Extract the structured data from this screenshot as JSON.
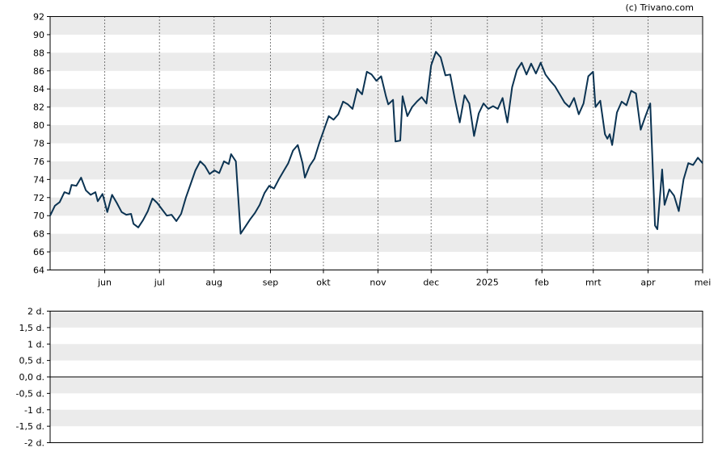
{
  "credit": "(c) Trivano.com",
  "colors": {
    "line": "#0b3352",
    "band": "#ebebeb",
    "grid": "#000000",
    "background": "#ffffff"
  },
  "chart_data": [
    {
      "type": "line",
      "title": "",
      "xlabel": "",
      "ylabel": "",
      "ylim": [
        64,
        92
      ],
      "grid": "dotted vertical lines at month boundaries, alternating horizontal bands",
      "y_ticks": [
        64,
        66,
        68,
        70,
        72,
        74,
        76,
        78,
        80,
        82,
        84,
        86,
        88,
        90,
        92
      ],
      "x_months": [
        {
          "label": "jun",
          "x": 30.4
        },
        {
          "label": "jul",
          "x": 60.9
        },
        {
          "label": "aug",
          "x": 91.3
        },
        {
          "label": "sep",
          "x": 122.7
        },
        {
          "label": "okt",
          "x": 152.2
        },
        {
          "label": "nov",
          "x": 182.6
        },
        {
          "label": "dec",
          "x": 212.2
        },
        {
          "label": "2025",
          "x": 243.5
        },
        {
          "label": "feb",
          "x": 273.9
        },
        {
          "label": "mrt",
          "x": 302.5
        },
        {
          "label": "apr",
          "x": 333.0
        },
        {
          "label": "mei",
          "x": 363.4
        }
      ],
      "series": [
        {
          "values": [
            [
              0,
              70.0
            ],
            [
              2,
              71.1
            ],
            [
              4,
              71.5
            ],
            [
              6,
              72.6
            ],
            [
              8,
              72.4
            ],
            [
              9,
              73.4
            ],
            [
              11,
              73.3
            ],
            [
              13,
              74.2
            ],
            [
              15,
              72.8
            ],
            [
              17,
              72.3
            ],
            [
              19,
              72.6
            ],
            [
              20,
              71.6
            ],
            [
              22,
              72.4
            ],
            [
              24,
              70.4
            ],
            [
              26,
              72.3
            ],
            [
              28,
              71.4
            ],
            [
              30,
              70.4
            ],
            [
              32,
              70.1
            ],
            [
              34,
              70.2
            ],
            [
              35,
              69.1
            ],
            [
              37,
              68.7
            ],
            [
              39,
              69.5
            ],
            [
              41,
              70.5
            ],
            [
              43,
              71.9
            ],
            [
              45,
              71.4
            ],
            [
              47,
              70.7
            ],
            [
              49,
              70.0
            ],
            [
              51,
              70.1
            ],
            [
              53,
              69.4
            ],
            [
              55,
              70.2
            ],
            [
              57,
              72.0
            ],
            [
              59,
              73.5
            ],
            [
              61,
              75.0
            ],
            [
              63,
              76.0
            ],
            [
              65,
              75.5
            ],
            [
              67,
              74.6
            ],
            [
              69,
              75.0
            ],
            [
              71,
              74.7
            ],
            [
              73,
              76.0
            ],
            [
              75,
              75.7
            ],
            [
              76,
              76.8
            ],
            [
              78,
              76.0
            ],
            [
              80,
              68.0
            ],
            [
              82,
              68.8
            ],
            [
              84,
              69.6
            ],
            [
              86,
              70.3
            ],
            [
              88,
              71.2
            ],
            [
              90,
              72.5
            ],
            [
              92,
              73.3
            ],
            [
              94,
              73.0
            ],
            [
              96,
              74.0
            ],
            [
              98,
              74.9
            ],
            [
              100,
              75.8
            ],
            [
              102,
              77.2
            ],
            [
              104,
              77.8
            ],
            [
              106,
              75.8
            ],
            [
              107,
              74.2
            ],
            [
              109,
              75.5
            ],
            [
              111,
              76.3
            ],
            [
              113,
              78.0
            ],
            [
              115,
              79.5
            ],
            [
              117,
              81.0
            ],
            [
              119,
              80.6
            ],
            [
              121,
              81.2
            ],
            [
              123,
              82.6
            ],
            [
              125,
              82.3
            ],
            [
              127,
              81.8
            ],
            [
              129,
              84.0
            ],
            [
              131,
              83.4
            ],
            [
              133,
              85.9
            ],
            [
              135,
              85.6
            ],
            [
              137,
              84.9
            ],
            [
              139,
              85.4
            ],
            [
              141,
              83.2
            ],
            [
              142,
              82.3
            ],
            [
              144,
              82.8
            ],
            [
              145,
              78.2
            ],
            [
              147,
              78.3
            ],
            [
              148,
              83.2
            ],
            [
              150,
              81.0
            ],
            [
              152,
              82.0
            ],
            [
              154,
              82.6
            ],
            [
              156,
              83.1
            ],
            [
              158,
              82.4
            ],
            [
              160,
              86.6
            ],
            [
              162,
              88.1
            ],
            [
              164,
              87.5
            ],
            [
              166,
              85.5
            ],
            [
              168,
              85.6
            ],
            [
              170,
              82.8
            ],
            [
              172,
              80.3
            ],
            [
              174,
              83.3
            ],
            [
              176,
              82.4
            ],
            [
              178,
              78.8
            ],
            [
              180,
              81.3
            ],
            [
              182,
              82.4
            ],
            [
              184,
              81.8
            ],
            [
              186,
              82.1
            ],
            [
              188,
              81.8
            ],
            [
              190,
              83.0
            ],
            [
              192,
              80.3
            ],
            [
              194,
              84.2
            ],
            [
              196,
              86.1
            ],
            [
              198,
              86.9
            ],
            [
              200,
              85.6
            ],
            [
              202,
              86.8
            ],
            [
              204,
              85.7
            ],
            [
              206,
              86.9
            ],
            [
              208,
              85.6
            ],
            [
              210,
              84.9
            ],
            [
              212,
              84.3
            ],
            [
              214,
              83.4
            ],
            [
              216,
              82.5
            ],
            [
              218,
              82.0
            ],
            [
              220,
              83.0
            ],
            [
              222,
              81.2
            ],
            [
              224,
              82.4
            ],
            [
              226,
              85.4
            ],
            [
              228,
              85.9
            ],
            [
              229,
              82.0
            ],
            [
              231,
              82.7
            ],
            [
              233,
              79.0
            ],
            [
              234,
              78.5
            ],
            [
              235,
              79.0
            ],
            [
              236,
              77.8
            ],
            [
              238,
              81.4
            ],
            [
              240,
              82.6
            ],
            [
              242,
              82.2
            ],
            [
              244,
              83.8
            ],
            [
              246,
              83.5
            ],
            [
              248,
              79.5
            ],
            [
              250,
              81.0
            ],
            [
              252,
              82.4
            ],
            [
              254,
              68.9
            ],
            [
              255,
              68.5
            ],
            [
              257,
              75.1
            ],
            [
              258,
              71.2
            ],
            [
              260,
              72.9
            ],
            [
              262,
              72.2
            ],
            [
              264,
              70.5
            ],
            [
              266,
              74.0
            ],
            [
              268,
              75.8
            ],
            [
              270,
              75.6
            ],
            [
              272,
              76.4
            ],
            [
              274,
              75.8
            ]
          ]
        }
      ]
    },
    {
      "type": "line",
      "title": "",
      "xlabel": "",
      "ylabel": "",
      "ylim": [
        -2,
        2
      ],
      "y_ticks": [
        "-2 d.",
        "-1,5 d.",
        "-1 d.",
        "-0,5 d.",
        "0,0 d.",
        "0,5 d.",
        "1 d.",
        "1,5 d.",
        "2 d."
      ],
      "series": []
    }
  ]
}
